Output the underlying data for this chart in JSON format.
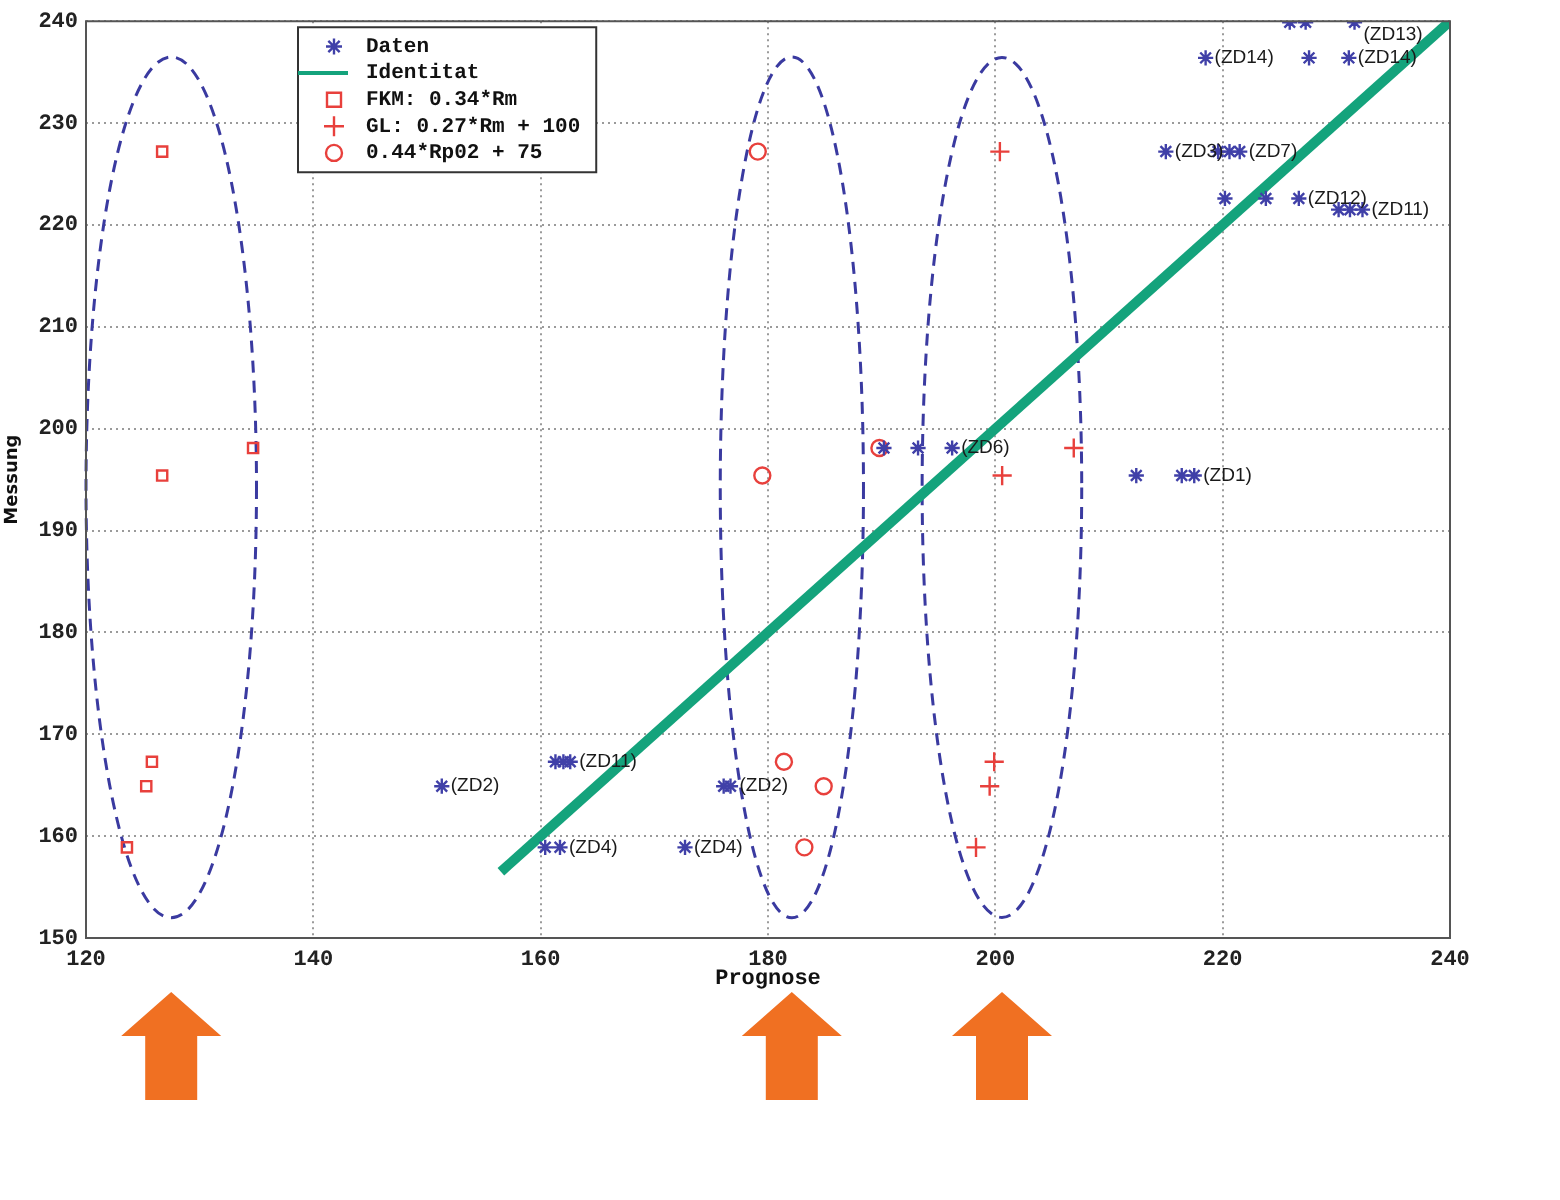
{
  "chart_data": {
    "type": "scatter",
    "xlabel": "Prognose",
    "ylabel": "Messung",
    "xlim": [
      120,
      240
    ],
    "ylim": [
      150,
      240
    ],
    "xticks": [
      120,
      140,
      160,
      180,
      200,
      220,
      240
    ],
    "yticks": [
      150,
      160,
      170,
      180,
      190,
      200,
      210,
      220,
      230,
      240
    ],
    "grid": true,
    "legend": "top left",
    "series": [
      {
        "name": "Daten",
        "color": "#4040a8",
        "x": [
          225.9,
          227.3,
          231.6,
          218.5,
          227.6,
          231.1,
          215.0,
          219.6,
          220.6,
          221.5,
          220.2,
          223.8,
          226.7,
          230.2,
          231.2,
          232.3,
          190.2,
          193.2,
          196.2,
          212.4,
          216.4,
          217.5,
          161.3,
          162.0,
          162.6,
          151.3,
          176.1,
          176.7,
          160.4,
          161.7,
          172.7
        ],
        "values": [
          239.9,
          239.9,
          239.9,
          236.4,
          236.4,
          236.4,
          227.2,
          227.2,
          227.2,
          227.2,
          222.6,
          222.6,
          222.6,
          221.5,
          221.5,
          221.5,
          198.1,
          198.1,
          198.1,
          195.4,
          195.4,
          195.4,
          167.3,
          167.3,
          167.3,
          164.9,
          164.9,
          164.9,
          158.9,
          158.9,
          158.9
        ],
        "value_labels": [
          null,
          null,
          "(ZD13)",
          "(ZD14)",
          null,
          "(ZD14)",
          "(ZD3)",
          null,
          null,
          "(ZD7)",
          null,
          null,
          "(ZD12)",
          null,
          null,
          "(ZD11)",
          null,
          null,
          "(ZD6)",
          null,
          null,
          "(ZD1)",
          null,
          null,
          "(ZD11)",
          "(ZD2)",
          null,
          "(ZD2)",
          null,
          "(ZD4)",
          "(ZD4)"
        ]
      },
      {
        "name": "Identitat",
        "type": "line",
        "marker": "none",
        "color": "#14a37c",
        "x": [
          156.5,
          240
        ],
        "values": [
          156.5,
          240
        ]
      },
      {
        "name": "FKM: 0.34*Rm",
        "marker": "square",
        "color": "#e8403c",
        "x": [
          126.7,
          126.7,
          134.7,
          125.8,
          125.3,
          123.6
        ],
        "values": [
          227.2,
          195.4,
          198.1,
          167.3,
          164.9,
          158.9
        ]
      },
      {
        "name": "GL: 0.27*Rm + 100",
        "marker": "cross",
        "color": "#e8403c",
        "x": [
          200.4,
          206.9,
          200.6,
          199.9,
          199.5,
          198.3
        ],
        "values": [
          227.2,
          198.1,
          195.4,
          167.3,
          164.9,
          158.9
        ]
      },
      {
        "name": "0.44*Rp02 + 75",
        "marker": "circle",
        "color": "#e8403c",
        "x": [
          179.1,
          179.5,
          189.8,
          181.4,
          184.9,
          183.2
        ],
        "values": [
          227.2,
          195.4,
          198.1,
          167.3,
          164.9,
          158.9
        ]
      }
    ]
  }
}
